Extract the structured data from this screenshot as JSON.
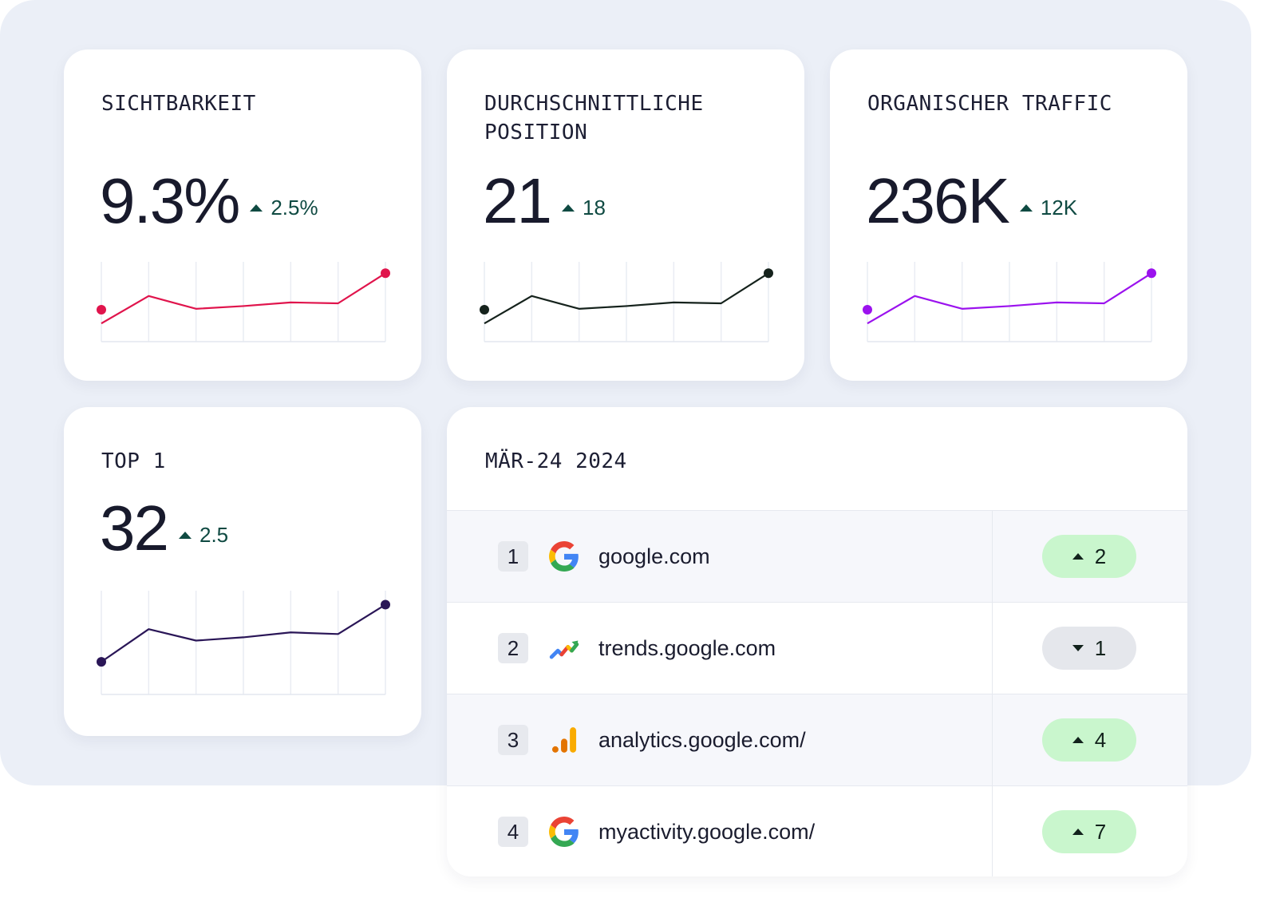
{
  "kpis": [
    {
      "title": "SICHTBARKEIT",
      "value": "9.3%",
      "delta": "2.5%",
      "color": "#e0144c",
      "trend": [
        2,
        5,
        3.6,
        3.9,
        4.3,
        4.2,
        7.5
      ],
      "start_marker": 3.5
    },
    {
      "title": "DURCHSCHNITTLICHE\nPOSITION",
      "value": "21",
      "delta": "18",
      "color": "#15221c",
      "trend": [
        2,
        5,
        3.6,
        3.9,
        4.3,
        4.2,
        7.5
      ],
      "start_marker": 3.5
    },
    {
      "title": "ORGANISCHER TRAFFIC",
      "value": "236K",
      "delta": "12K",
      "color": "#9b12ee",
      "trend": [
        2,
        5,
        3.6,
        3.9,
        4.3,
        4.2,
        7.5
      ],
      "start_marker": 3.5
    },
    {
      "title": "TOP 1",
      "value": "32",
      "delta": "2.5",
      "color": "#2a1657",
      "trend": [
        4,
        8,
        6.6,
        7,
        7.6,
        7.4,
        11
      ],
      "start_marker": 4
    }
  ],
  "ranking": {
    "title": "MÄR-24 2024",
    "rows": [
      {
        "rank": "1",
        "icon": "google-icon",
        "domain": "google.com",
        "direction": "up",
        "change": "2"
      },
      {
        "rank": "2",
        "icon": "trends-icon",
        "domain": "trends.google.com",
        "direction": "down",
        "change": "1"
      },
      {
        "rank": "3",
        "icon": "analytics-icon",
        "domain": "analytics.google.com/",
        "direction": "up",
        "change": "4"
      },
      {
        "rank": "4",
        "icon": "google-icon",
        "domain": "myactivity.google.com/",
        "direction": "up",
        "change": "7"
      }
    ]
  }
}
